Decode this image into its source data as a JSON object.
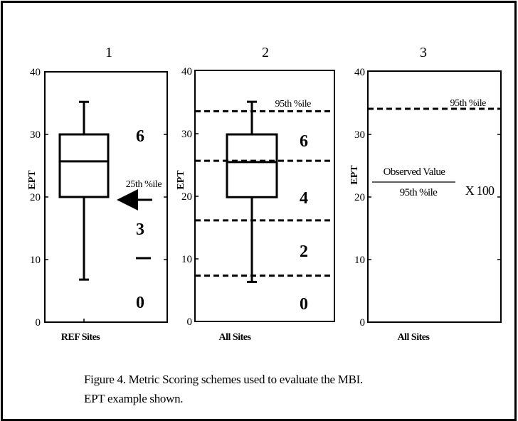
{
  "panels": [
    {
      "number": "1",
      "ylabel": "EPT",
      "xlabel": "REF Sites",
      "yticks": [
        "0",
        "10",
        "20",
        "30",
        "40"
      ],
      "box": {
        "min": 6.8,
        "q1": 20,
        "median": 25.7,
        "q3": 30,
        "max": 35.2
      },
      "scores": [
        "6",
        "3",
        "0"
      ],
      "arrow_label": "25th %ile"
    },
    {
      "number": "2",
      "ylabel": "EPT",
      "xlabel": "All Sites",
      "yticks": [
        "0",
        "10",
        "20",
        "30",
        "40"
      ],
      "box": {
        "min": 6.3,
        "q1": 19.8,
        "median": 25.4,
        "q3": 29.8,
        "max": 35
      },
      "lines": [
        33.5,
        25.6,
        16.1,
        7.3
      ],
      "line_label": "95th %ile",
      "scores": [
        "6",
        "4",
        "2",
        "0"
      ]
    },
    {
      "number": "3",
      "ylabel": "EPT",
      "xlabel": "All Sites",
      "yticks": [
        "0",
        "10",
        "20",
        "30",
        "40"
      ],
      "line": 34,
      "line_label": "95th %ile",
      "formula": {
        "numerator": "Observed Value",
        "denominator": "95th %ile",
        "multiplier": "X 100"
      }
    }
  ],
  "caption": {
    "line1": "Figure 4.  Metric Scoring schemes used to evaluate the MBI.",
    "line2": "EPT example shown."
  }
}
